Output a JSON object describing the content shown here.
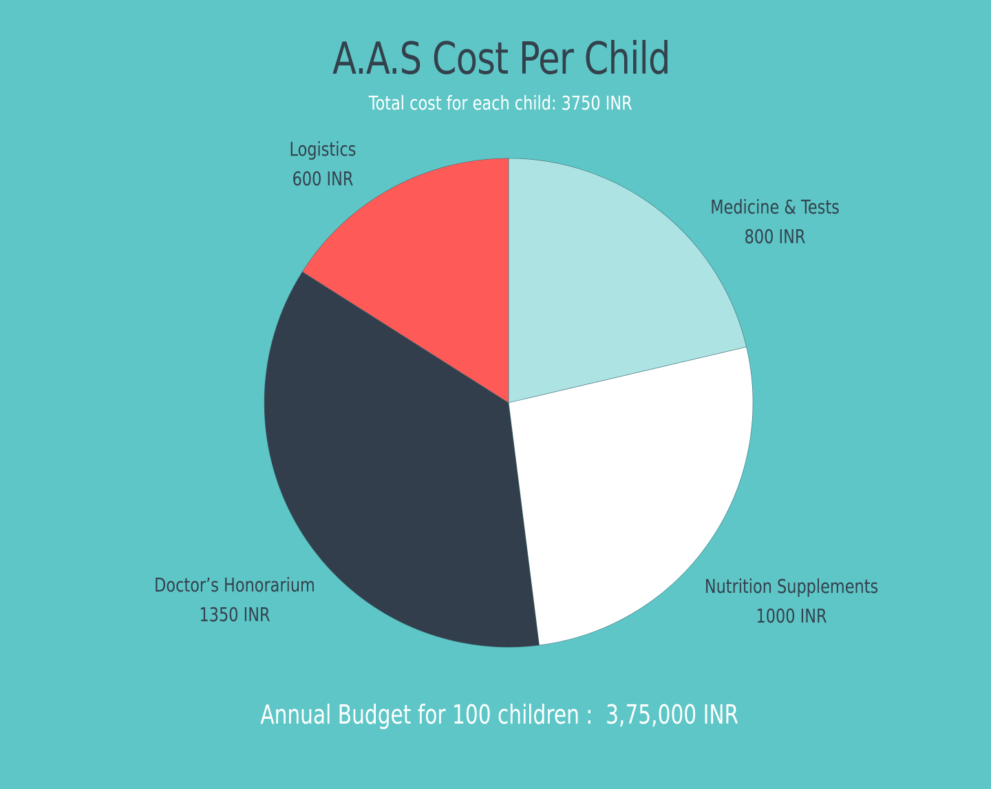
{
  "chart_data": {
    "type": "pie",
    "title": "A.A.S Cost Per Child",
    "subtitle": "Total cost for each child: 3750 INR",
    "unit": "INR",
    "slices": [
      {
        "name": "Medicine & Tests",
        "value": 800,
        "value_label": "800 INR",
        "color": "#ade3e3"
      },
      {
        "name": "Nutrition Supplements",
        "value": 1000,
        "value_label": "1000 INR",
        "color": "#ffffff"
      },
      {
        "name": "Doctor’s Honorarium",
        "value": 1350,
        "value_label": "1350 INR",
        "color": "#323e4b"
      },
      {
        "name": "Logistics",
        "value": 600,
        "value_label": "600 INR",
        "color": "#fe5a57"
      }
    ],
    "start_angle_deg": 0,
    "direction": "clockwise",
    "footer": "Annual Budget for 100 children :  3,75,000 INR"
  },
  "colors": {
    "background": "#5ec6c6",
    "title_text": "#33414d",
    "subtitle_text": "#ffffff",
    "label_text": "#33414d"
  }
}
